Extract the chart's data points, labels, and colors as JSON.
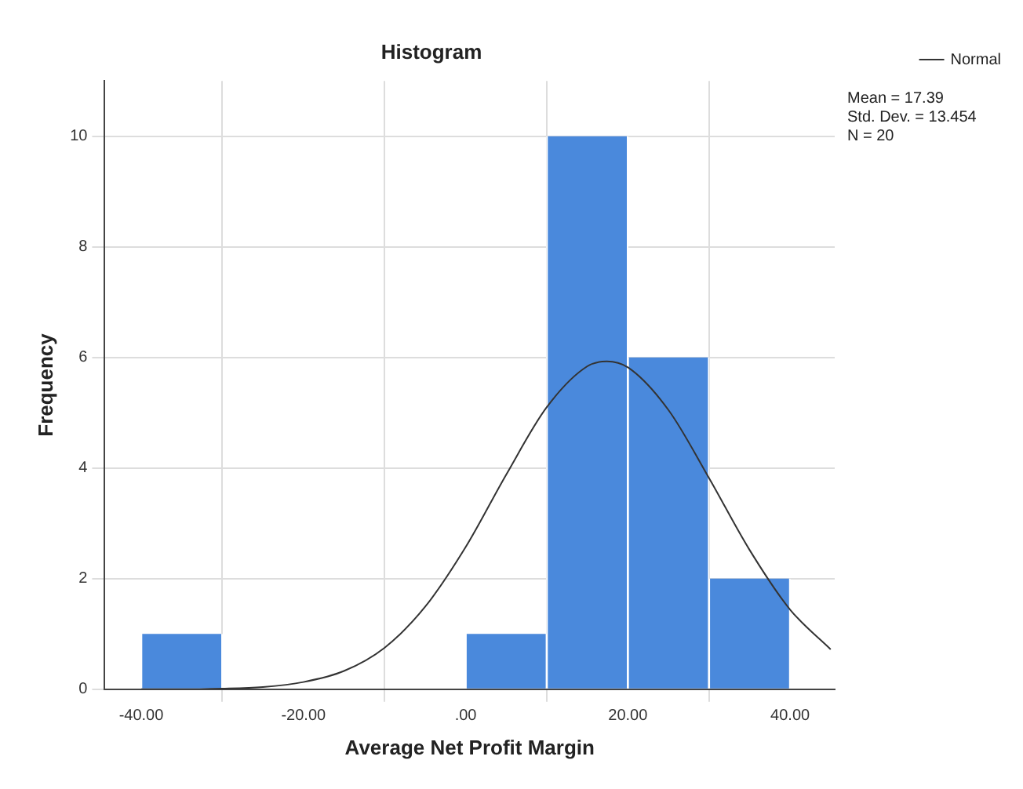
{
  "chart_data": {
    "type": "histogram",
    "title": "Histogram",
    "xlabel": "Average Net Profit Margin",
    "ylabel": "Frequency",
    "bins": [
      -40,
      -30,
      -20,
      -10,
      0,
      10,
      20,
      30,
      40
    ],
    "values": [
      1,
      0,
      0,
      0,
      1,
      10,
      6,
      2
    ],
    "color": "#4a89dc",
    "series": [
      {
        "type": "line",
        "name": "Normal",
        "color": "#333333",
        "x": [
          -40,
          -35,
          -30,
          -25,
          -20,
          -15,
          -10,
          -5,
          0,
          5,
          10,
          15,
          17.4,
          20,
          25,
          30,
          35,
          40,
          45
        ],
        "values": [
          0,
          0,
          0.01,
          0.04,
          0.13,
          0.33,
          0.75,
          1.49,
          2.57,
          3.88,
          5.1,
          5.84,
          5.93,
          5.82,
          5.05,
          3.82,
          2.52,
          1.44,
          0.72
        ]
      }
    ],
    "xlim": [
      -44.5,
      45.5
    ],
    "xticks": [
      {
        "value": -40,
        "label": "-40.00"
      },
      {
        "value": -20,
        "label": "-20.00"
      },
      {
        "value": 0,
        "label": ".00"
      },
      {
        "value": 20,
        "label": "20.00"
      },
      {
        "value": 40,
        "label": "40.00"
      }
    ],
    "ylim": [
      0,
      11
    ],
    "yticks": [
      0,
      2,
      4,
      6,
      8,
      10
    ],
    "grid": true,
    "legend": "top right",
    "annotations": [
      "Mean = 17.39",
      "Std. Dev. = 13.454",
      "N = 20"
    ]
  }
}
